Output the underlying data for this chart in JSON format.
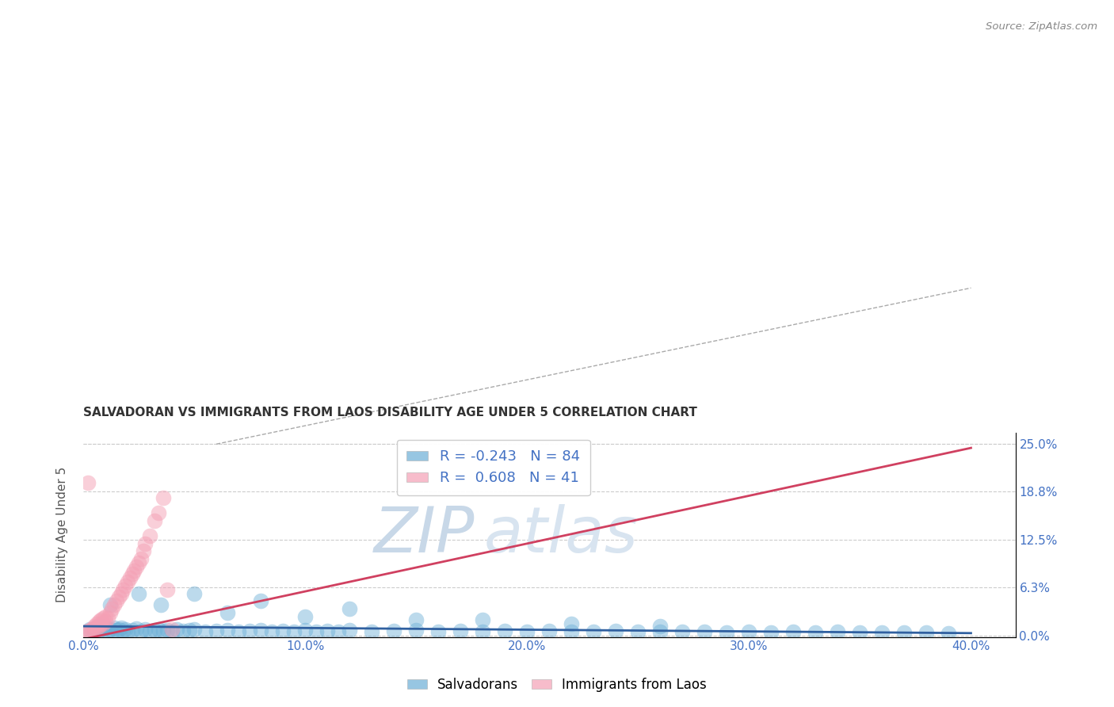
{
  "title": "SALVADORAN VS IMMIGRANTS FROM LAOS DISABILITY AGE UNDER 5 CORRELATION CHART",
  "source": "Source: ZipAtlas.com",
  "ylabel": "Disability Age Under 5",
  "xlabel_ticks": [
    "0.0%",
    "10.0%",
    "20.0%",
    "30.0%",
    "40.0%"
  ],
  "xlabel_vals": [
    0.0,
    0.1,
    0.2,
    0.3,
    0.4
  ],
  "ylabel_ticks": [
    "0.0%",
    "6.3%",
    "12.5%",
    "18.8%",
    "25.0%"
  ],
  "ylabel_vals": [
    0.0,
    0.063,
    0.125,
    0.188,
    0.25
  ],
  "xlim": [
    0.0,
    0.42
  ],
  "ylim": [
    -0.002,
    0.265
  ],
  "R_blue": -0.243,
  "N_blue": 84,
  "R_pink": 0.608,
  "N_pink": 41,
  "blue_color": "#6baed6",
  "pink_color": "#f4a0b5",
  "blue_line_color": "#3060a0",
  "pink_line_color": "#d04060",
  "watermark_zip_color": "#c8d8e8",
  "watermark_atlas_color": "#d8e4f0",
  "title_color": "#333333",
  "axis_label_color": "#4472c4",
  "grid_color": "#cccccc",
  "blue_scatter_x": [
    0.003,
    0.005,
    0.006,
    0.007,
    0.008,
    0.009,
    0.01,
    0.011,
    0.012,
    0.013,
    0.014,
    0.015,
    0.016,
    0.017,
    0.018,
    0.019,
    0.02,
    0.022,
    0.024,
    0.026,
    0.028,
    0.03,
    0.032,
    0.034,
    0.036,
    0.038,
    0.04,
    0.042,
    0.045,
    0.048,
    0.05,
    0.055,
    0.06,
    0.065,
    0.07,
    0.075,
    0.08,
    0.085,
    0.09,
    0.095,
    0.1,
    0.105,
    0.11,
    0.115,
    0.12,
    0.13,
    0.14,
    0.15,
    0.16,
    0.17,
    0.18,
    0.19,
    0.2,
    0.21,
    0.22,
    0.23,
    0.24,
    0.25,
    0.26,
    0.27,
    0.28,
    0.29,
    0.3,
    0.31,
    0.32,
    0.33,
    0.34,
    0.35,
    0.36,
    0.37,
    0.38,
    0.39,
    0.012,
    0.025,
    0.035,
    0.05,
    0.065,
    0.08,
    0.1,
    0.12,
    0.15,
    0.18,
    0.22,
    0.26
  ],
  "blue_scatter_y": [
    0.008,
    0.005,
    0.01,
    0.007,
    0.012,
    0.008,
    0.01,
    0.006,
    0.008,
    0.005,
    0.01,
    0.007,
    0.008,
    0.01,
    0.006,
    0.008,
    0.005,
    0.007,
    0.009,
    0.006,
    0.008,
    0.005,
    0.007,
    0.008,
    0.006,
    0.007,
    0.005,
    0.008,
    0.006,
    0.007,
    0.008,
    0.005,
    0.006,
    0.007,
    0.005,
    0.006,
    0.007,
    0.005,
    0.006,
    0.005,
    0.007,
    0.005,
    0.006,
    0.005,
    0.007,
    0.005,
    0.006,
    0.007,
    0.005,
    0.006,
    0.005,
    0.006,
    0.005,
    0.006,
    0.005,
    0.005,
    0.006,
    0.005,
    0.005,
    0.005,
    0.005,
    0.004,
    0.005,
    0.004,
    0.005,
    0.004,
    0.005,
    0.004,
    0.004,
    0.004,
    0.004,
    0.003,
    0.04,
    0.055,
    0.04,
    0.055,
    0.03,
    0.045,
    0.025,
    0.035,
    0.02,
    0.02,
    0.015,
    0.012
  ],
  "pink_scatter_x": [
    0.001,
    0.002,
    0.003,
    0.004,
    0.005,
    0.005,
    0.006,
    0.006,
    0.007,
    0.007,
    0.008,
    0.008,
    0.009,
    0.009,
    0.01,
    0.01,
    0.011,
    0.012,
    0.013,
    0.014,
    0.015,
    0.016,
    0.017,
    0.018,
    0.019,
    0.02,
    0.021,
    0.022,
    0.023,
    0.024,
    0.025,
    0.026,
    0.027,
    0.028,
    0.03,
    0.032,
    0.034,
    0.036,
    0.038,
    0.04,
    0.002
  ],
  "pink_scatter_y": [
    0.005,
    0.005,
    0.007,
    0.008,
    0.01,
    0.012,
    0.01,
    0.015,
    0.012,
    0.018,
    0.015,
    0.02,
    0.015,
    0.022,
    0.018,
    0.025,
    0.022,
    0.03,
    0.035,
    0.04,
    0.045,
    0.05,
    0.055,
    0.06,
    0.065,
    0.07,
    0.075,
    0.08,
    0.085,
    0.09,
    0.095,
    0.1,
    0.11,
    0.12,
    0.13,
    0.15,
    0.16,
    0.18,
    0.06,
    0.008,
    0.2
  ],
  "blue_trend_x": [
    0.0,
    0.4
  ],
  "blue_trend_y": [
    0.012,
    0.003
  ],
  "pink_trend_x": [
    0.0,
    0.4
  ],
  "pink_trend_y": [
    -0.005,
    0.245
  ]
}
